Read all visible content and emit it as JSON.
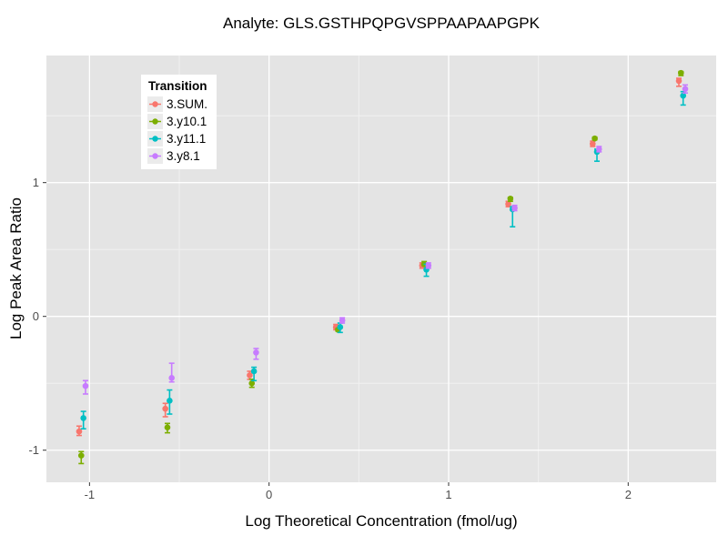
{
  "chart_data": {
    "type": "scatter",
    "title": "Analyte: GLS.GSTHPQPGVSPPAAPAAPGPK",
    "xlabel": "Log Theoretical Concentration (fmol/ug)",
    "ylabel": "Log Peak Area Ratio",
    "xlim": [
      -1.24,
      2.49
    ],
    "ylim": [
      -1.24,
      1.95
    ],
    "x_ticks": [
      -1,
      0,
      1,
      2
    ],
    "y_ticks": [
      -1,
      0,
      1
    ],
    "x_minor": [
      -0.5,
      0.5,
      1.5
    ],
    "y_minor": [
      -0.5,
      0.5,
      1.5
    ],
    "grid": true,
    "panel_color": "#E4E4E4",
    "major_grid_color": "#FFFFFF",
    "minor_grid_color": "#F2F2F2",
    "tick_label_color": "#4D4D4D",
    "legend": {
      "title": "Transition",
      "position": "top-left-inside"
    },
    "x": [
      -1.04,
      -0.56,
      -0.09,
      0.39,
      0.87,
      1.35,
      1.82,
      2.3
    ],
    "series": [
      {
        "name": "3.SUM.",
        "color": "#F8766D",
        "y": [
          -0.86,
          -0.69,
          -0.44,
          -0.08,
          0.38,
          0.84,
          1.29,
          1.76
        ],
        "ymin": [
          -0.89,
          -0.75,
          -0.47,
          -0.1,
          0.36,
          0.82,
          1.27,
          1.72
        ],
        "ymax": [
          -0.82,
          -0.65,
          -0.41,
          -0.06,
          0.4,
          0.86,
          1.31,
          1.78
        ]
      },
      {
        "name": "3.y10.1",
        "color": "#7CAE00",
        "y": [
          -1.04,
          -0.83,
          -0.5,
          -0.1,
          0.39,
          0.88,
          1.33,
          1.82
        ],
        "ymin": [
          -1.1,
          -0.87,
          -0.53,
          -0.11,
          0.38,
          0.86,
          1.32,
          1.8
        ],
        "ymax": [
          -1.01,
          -0.8,
          -0.47,
          -0.09,
          0.41,
          0.89,
          1.34,
          1.83
        ]
      },
      {
        "name": "3.y11.1",
        "color": "#00BFC4",
        "y": [
          -0.76,
          -0.63,
          -0.41,
          -0.08,
          0.35,
          0.8,
          1.23,
          1.65
        ],
        "ymin": [
          -0.84,
          -0.73,
          -0.48,
          -0.12,
          0.3,
          0.67,
          1.16,
          1.58
        ],
        "ymax": [
          -0.71,
          -0.55,
          -0.38,
          -0.05,
          0.39,
          0.82,
          1.25,
          1.68
        ]
      },
      {
        "name": "3.y8.1",
        "color": "#C77CFF",
        "y": [
          -0.52,
          -0.46,
          -0.27,
          -0.03,
          0.38,
          0.81,
          1.25,
          1.7
        ],
        "ymin": [
          -0.58,
          -0.49,
          -0.32,
          -0.05,
          0.36,
          0.79,
          1.23,
          1.67
        ],
        "ymax": [
          -0.48,
          -0.35,
          -0.24,
          -0.01,
          0.4,
          0.83,
          1.27,
          1.73
        ]
      }
    ]
  }
}
